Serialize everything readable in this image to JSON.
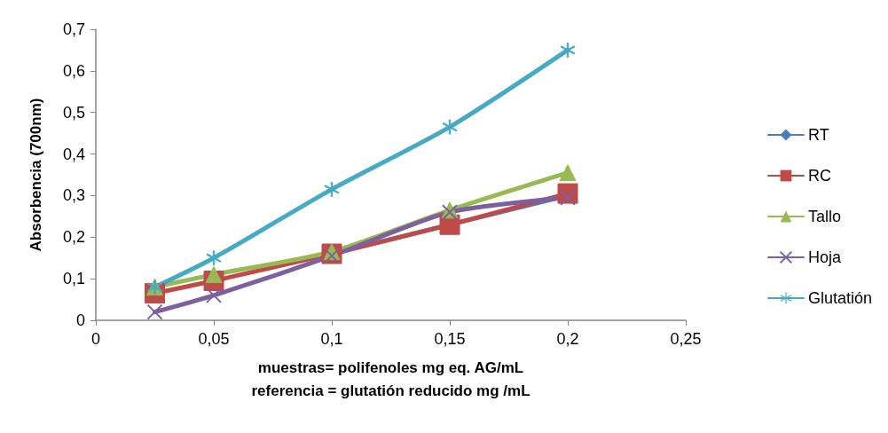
{
  "chart_data": {
    "type": "line",
    "xlabel": "muestras= polifenoles mg eq. AG/mL\nreferencia = glutatión reducido mg /mL",
    "ylabel": "Absorbencia (700nm)",
    "x": [
      0.025,
      0.05,
      0.1,
      0.15,
      0.2
    ],
    "series": [
      {
        "name": "RT",
        "color": "#4a7ebb",
        "marker": "diamond",
        "values": [
          null,
          null,
          0.16,
          null,
          0.3
        ]
      },
      {
        "name": "RC",
        "color": "#be4b48",
        "marker": "square",
        "values": [
          0.065,
          0.095,
          0.16,
          0.23,
          0.305
        ]
      },
      {
        "name": "Tallo",
        "color": "#98b954",
        "marker": "triangle",
        "values": [
          0.08,
          0.11,
          0.165,
          0.265,
          0.355
        ]
      },
      {
        "name": "Hoja",
        "color": "#7d60a0",
        "marker": "cross",
        "values": [
          0.02,
          0.06,
          0.155,
          0.26,
          0.295
        ]
      },
      {
        "name": "Glutatión",
        "color": "#46aac5",
        "marker": "star",
        "values": [
          0.08,
          0.15,
          0.315,
          0.465,
          0.65
        ]
      }
    ],
    "xlim": [
      0,
      0.25
    ],
    "xticks": [
      0,
      {
        "value": 0.05,
        "label": "0,05"
      },
      {
        "value": 0.1,
        "label": "0,1"
      },
      {
        "value": 0.15,
        "label": "0,15"
      },
      {
        "value": 0.2,
        "label": "0,2"
      },
      {
        "value": 0.25,
        "label": "0,25"
      }
    ],
    "ylim": [
      0,
      0.7
    ],
    "yticks": [
      0,
      {
        "value": 0.1,
        "label": "0,1"
      },
      {
        "value": 0.2,
        "label": "0,2"
      },
      {
        "value": 0.3,
        "label": "0,3"
      },
      {
        "value": 0.4,
        "label": "0,4"
      },
      {
        "value": 0.5,
        "label": "0,5"
      },
      {
        "value": 0.6,
        "label": "0,6"
      },
      {
        "value": 0.7,
        "label": "0,7"
      }
    ],
    "grid": false,
    "legend": "right",
    "line_style": "solid"
  }
}
